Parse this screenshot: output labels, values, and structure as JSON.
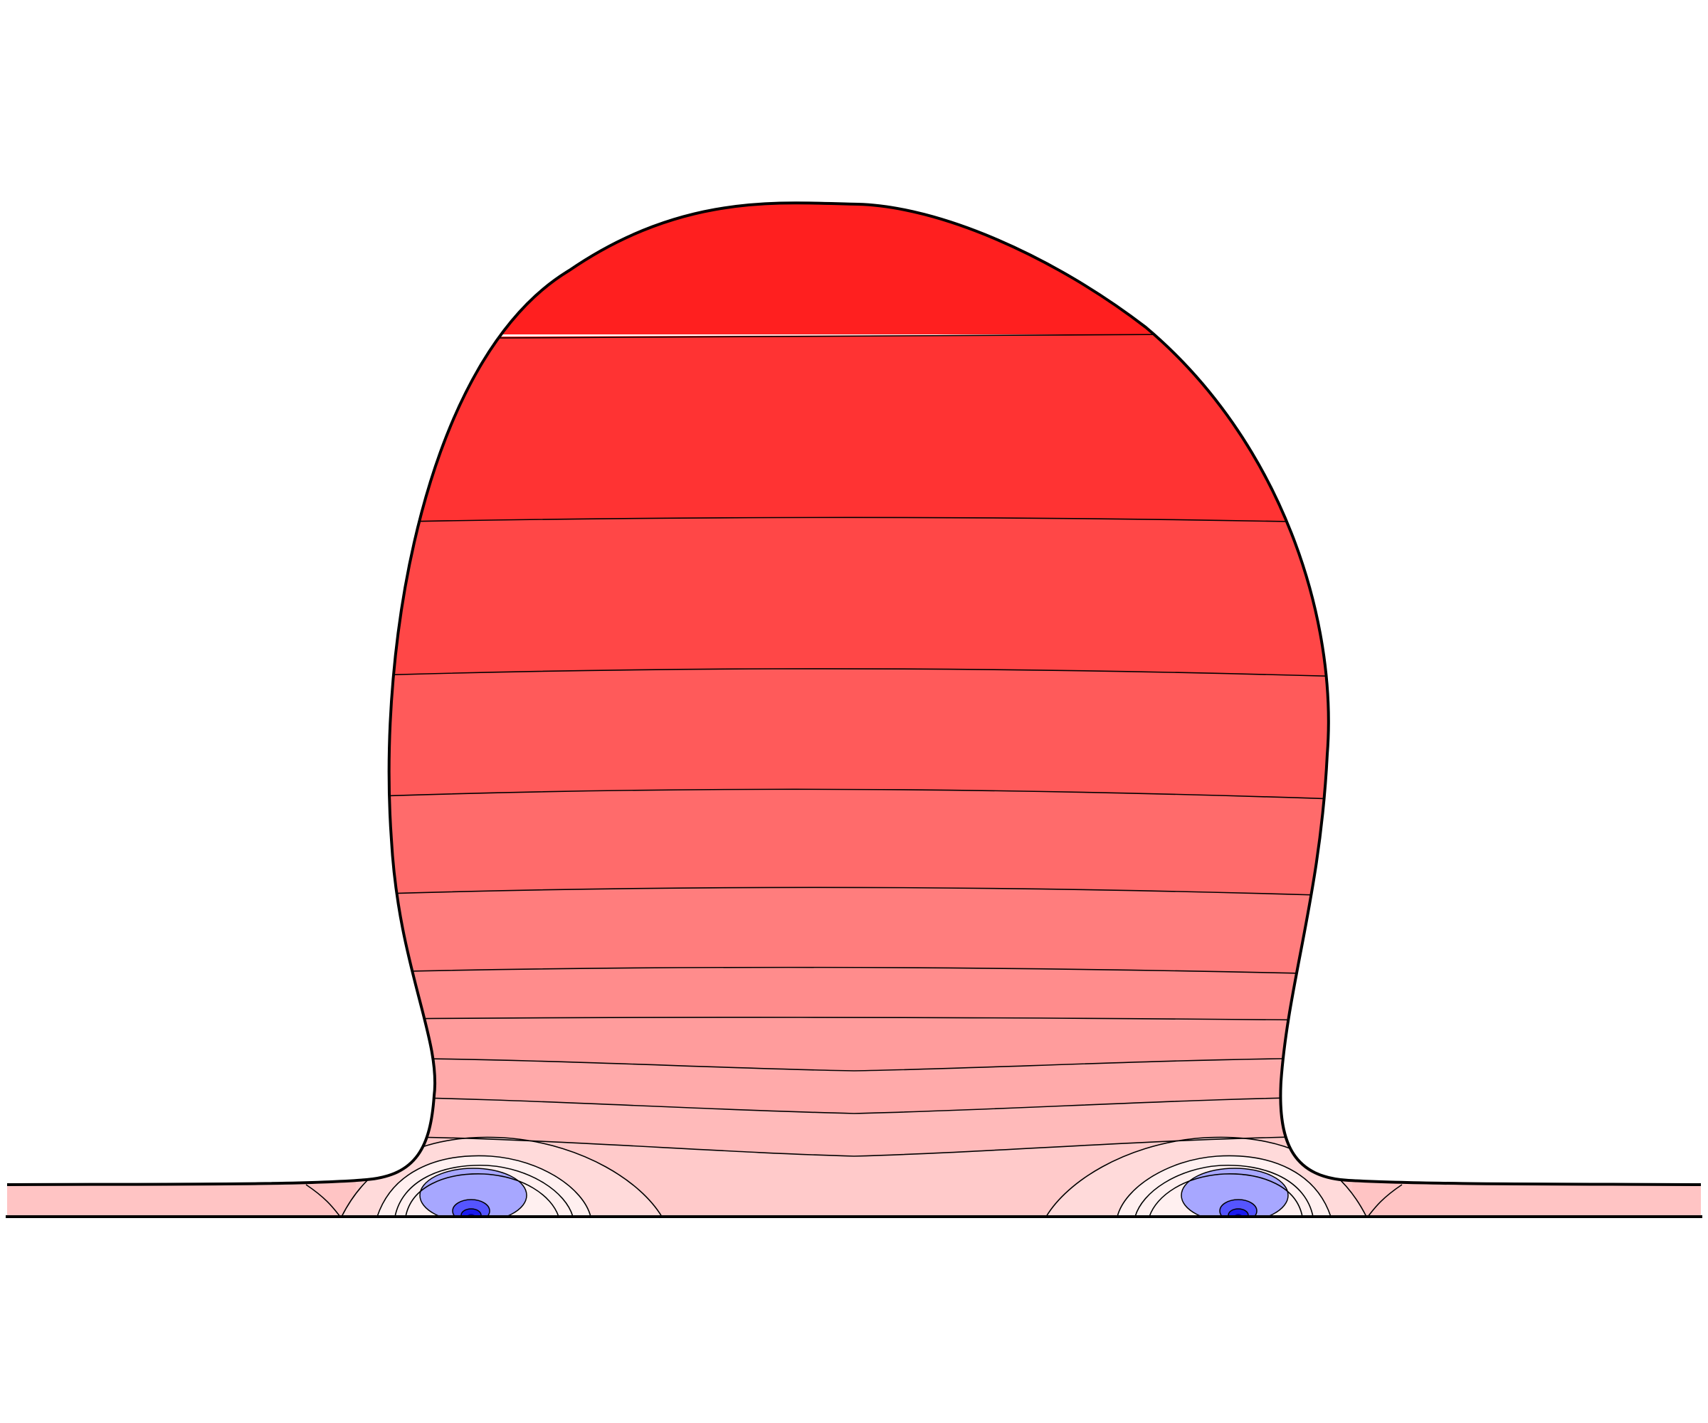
{
  "figure": {
    "background": "#ffffff",
    "outline_color": "#000000",
    "contour_line_color": "#000000",
    "positive_colors": [
      "#ff1f1f",
      "#ff3333",
      "#ff4747",
      "#ff5a5a",
      "#ff6b6b",
      "#ff7d7d",
      "#ff8c8c",
      "#ff9c9c",
      "#ffaaaa",
      "#ffbaba",
      "#ffcaca",
      "#ffdada",
      "#fff0f0"
    ],
    "film_color": "#ffc4c4",
    "negative_colors": [
      "#a7a7ff",
      "#5555ff",
      "#1a1aee",
      "#0000a0"
    ]
  }
}
